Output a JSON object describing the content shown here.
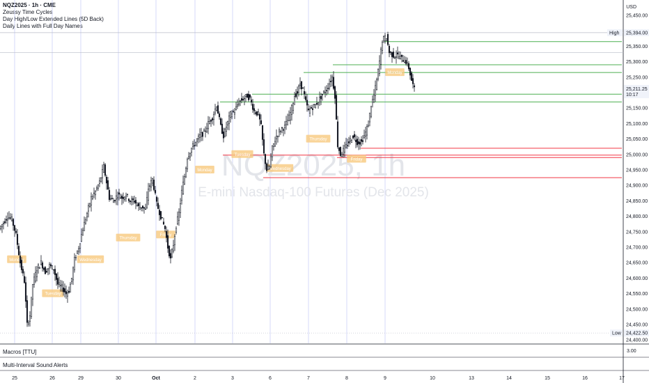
{
  "legend": {
    "symbol": "NQZ2025 · 1h · CME",
    "indicators": [
      "Zeussy Time Cycles",
      "Day High/Low Extended Lines (5D Back)",
      "Daily Lines with Full Day Names"
    ]
  },
  "panes": {
    "macros_label": "Macros [TTU]",
    "alerts_label": "Multi-Interval Sound Alerts",
    "macros_value": "3.00"
  },
  "price_axis": {
    "currency": "USD",
    "high_tag": {
      "label": "High",
      "value": "25,394.00"
    },
    "low_tag": {
      "label": "Low",
      "value": "24,422.50"
    },
    "last_price": {
      "value": "25,211.25",
      "countdown": "10:17"
    }
  },
  "watermark": {
    "main": "NQZ2025, 1h",
    "sub": "E-mini Nasdaq-100 Futures (Dec 2025)"
  },
  "colors": {
    "up": "#131722",
    "down": "#131722",
    "green_line": "#4caf50",
    "red_line": "#f23645",
    "session_box": "#f7c97e",
    "grid": "#c5cbf5",
    "high_line": "#b2b5be"
  },
  "chart_data": {
    "type": "candlestick",
    "title": "NQZ2025 · 1h · CME",
    "x_tick_labels": [
      "25",
      "26",
      "29",
      "30",
      "Oct",
      "2",
      "3",
      "6",
      "7",
      "8",
      "9",
      "10",
      "13",
      "14",
      "15",
      "16",
      "17"
    ],
    "y_tick_labels": [
      "24,400.00",
      "24,450.00",
      "24,500.00",
      "24,550.00",
      "24,600.00",
      "24,650.00",
      "24,700.00",
      "24,750.00",
      "24,800.00",
      "24,850.00",
      "24,900.00",
      "24,950.00",
      "25,000.00",
      "25,050.00",
      "25,100.00",
      "25,150.00",
      "25,250.00",
      "25,300.00",
      "25,350.00",
      "25,450.00"
    ],
    "ylim": [
      24380,
      25480
    ],
    "path_points": [
      [
        0,
        24760
      ],
      [
        6,
        24780
      ],
      [
        12,
        24800
      ],
      [
        18,
        24790
      ],
      [
        24,
        24740
      ],
      [
        30,
        24650
      ],
      [
        36,
        24590
      ],
      [
        40,
        24450
      ],
      [
        44,
        24480
      ],
      [
        48,
        24580
      ],
      [
        54,
        24630
      ],
      [
        60,
        24650
      ],
      [
        66,
        24620
      ],
      [
        72,
        24640
      ],
      [
        78,
        24630
      ],
      [
        84,
        24580
      ],
      [
        90,
        24570
      ],
      [
        96,
        24550
      ],
      [
        100,
        24560
      ],
      [
        104,
        24600
      ],
      [
        108,
        24660
      ],
      [
        114,
        24700
      ],
      [
        120,
        24760
      ],
      [
        126,
        24810
      ],
      [
        132,
        24860
      ],
      [
        138,
        24880
      ],
      [
        144,
        24910
      ],
      [
        150,
        24960
      ],
      [
        154,
        24910
      ],
      [
        158,
        24860
      ],
      [
        164,
        24850
      ],
      [
        170,
        24870
      ],
      [
        176,
        24860
      ],
      [
        182,
        24870
      ],
      [
        188,
        24850
      ],
      [
        194,
        24850
      ],
      [
        200,
        24830
      ],
      [
        206,
        24830
      ],
      [
        210,
        24820
      ],
      [
        214,
        24890
      ],
      [
        220,
        24920
      ],
      [
        226,
        24840
      ],
      [
        232,
        24800
      ],
      [
        238,
        24760
      ],
      [
        242,
        24700
      ],
      [
        246,
        24660
      ],
      [
        250,
        24710
      ],
      [
        254,
        24770
      ],
      [
        258,
        24810
      ],
      [
        262,
        24880
      ],
      [
        266,
        24930
      ],
      [
        270,
        24990
      ],
      [
        276,
        25020
      ],
      [
        282,
        25040
      ],
      [
        288,
        25060
      ],
      [
        294,
        25070
      ],
      [
        300,
        25100
      ],
      [
        306,
        25120
      ],
      [
        312,
        25160
      ],
      [
        318,
        25090
      ],
      [
        322,
        25060
      ],
      [
        326,
        25090
      ],
      [
        332,
        25130
      ],
      [
        338,
        25140
      ],
      [
        344,
        25170
      ],
      [
        350,
        25180
      ],
      [
        356,
        25190
      ],
      [
        360,
        25180
      ],
      [
        366,
        25140
      ],
      [
        372,
        25130
      ],
      [
        376,
        25090
      ],
      [
        380,
        25000
      ],
      [
        384,
        24950
      ],
      [
        388,
        24960
      ],
      [
        392,
        25020
      ],
      [
        398,
        25060
      ],
      [
        404,
        25080
      ],
      [
        410,
        25090
      ],
      [
        416,
        25120
      ],
      [
        420,
        25150
      ],
      [
        424,
        25190
      ],
      [
        428,
        25200
      ],
      [
        432,
        25230
      ],
      [
        436,
        25210
      ],
      [
        440,
        25170
      ],
      [
        444,
        25140
      ],
      [
        448,
        25150
      ],
      [
        454,
        25160
      ],
      [
        460,
        25180
      ],
      [
        466,
        25200
      ],
      [
        470,
        25210
      ],
      [
        474,
        25230
      ],
      [
        478,
        25250
      ],
      [
        482,
        25190
      ],
      [
        486,
        25030
      ],
      [
        490,
        25000
      ],
      [
        496,
        25020
      ],
      [
        502,
        25040
      ],
      [
        508,
        25060
      ],
      [
        514,
        25040
      ],
      [
        520,
        25040
      ],
      [
        526,
        25070
      ],
      [
        530,
        25100
      ],
      [
        534,
        25160
      ],
      [
        538,
        25190
      ],
      [
        542,
        25240
      ],
      [
        546,
        25300
      ],
      [
        550,
        25370
      ],
      [
        556,
        25380
      ],
      [
        560,
        25330
      ],
      [
        566,
        25320
      ],
      [
        572,
        25320
      ],
      [
        578,
        25310
      ],
      [
        584,
        25300
      ],
      [
        588,
        25280
      ],
      [
        592,
        25240
      ],
      [
        596,
        25210
      ]
    ],
    "session_labels": [
      {
        "name": "Monday",
        "x": 10,
        "price": 24660
      },
      {
        "name": "Tuesday",
        "x": 62,
        "price": 24550
      },
      {
        "name": "Wednesday",
        "x": 116,
        "price": 24660
      },
      {
        "name": "Thursday",
        "x": 170,
        "price": 24730
      },
      {
        "name": "Friday",
        "x": 224,
        "price": 24740
      },
      {
        "name": "Monday",
        "x": 280,
        "price": 24950
      },
      {
        "name": "Tuesday",
        "x": 334,
        "price": 25000
      },
      {
        "name": "Wednesday",
        "x": 388,
        "price": 24955
      },
      {
        "name": "Thursday",
        "x": 443,
        "price": 25050
      },
      {
        "name": "Friday",
        "x": 498,
        "price": 24985
      },
      {
        "name": "Monday",
        "x": 553,
        "price": 25265
      }
    ],
    "green_lines": [
      {
        "price": 25170,
        "x_start": 316
      },
      {
        "price": 25195,
        "x_start": 362
      },
      {
        "price": 25265,
        "x_start": 436
      },
      {
        "price": 25290,
        "x_start": 478
      },
      {
        "price": 25365,
        "x_start": 552
      }
    ],
    "red_lines": [
      {
        "price": 25020,
        "x_start": 518
      },
      {
        "price": 24998,
        "x_start": 320
      },
      {
        "price": 24990,
        "x_start": 484
      },
      {
        "price": 24925,
        "x_start": 378
      }
    ],
    "high_value": 25394,
    "low_value": 24422.5,
    "current_value": 25211.25
  }
}
